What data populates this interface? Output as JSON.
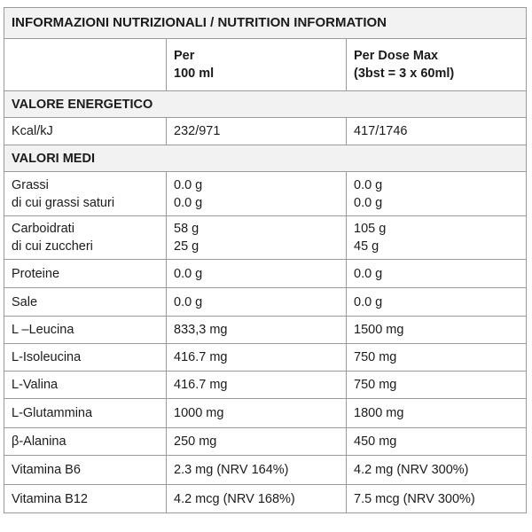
{
  "title": "INFORMAZIONI NUTRIZIONALI / NUTRITION INFORMATION",
  "header": {
    "col1": "",
    "col2_line1": "Per",
    "col2_line2": "100 ml",
    "col3_line1": "Per Dose Max",
    "col3_line2": "(3bst = 3 x 60ml)"
  },
  "sections": {
    "energy": "VALORE ENERGETICO",
    "averages": "VALORI MEDI"
  },
  "rows": {
    "kcal": {
      "label": "Kcal/kJ",
      "per100": "232/971",
      "dose": "417/1746"
    },
    "grassi": {
      "label1": "Grassi",
      "label2": "di cui grassi saturi",
      "per100_1": "0.0 g",
      "per100_2": "0.0 g",
      "dose_1": "0.0 g",
      "dose_2": "0.0 g"
    },
    "carbo": {
      "label1": "Carboidrati",
      "label2": "di cui zuccheri",
      "per100_1": "58 g",
      "per100_2": "25 g",
      "dose_1": "105 g",
      "dose_2": "45 g"
    },
    "proteine": {
      "label": "Proteine",
      "per100": "0.0 g",
      "dose": "0.0 g"
    },
    "sale": {
      "label": "Sale",
      "per100": "0.0 g",
      "dose": "0.0 g"
    },
    "leucina": {
      "label": "L –Leucina",
      "per100": "833,3 mg",
      "dose": "1500 mg"
    },
    "isoleucina": {
      "label": "L-Isoleucina",
      "per100": "416.7 mg",
      "dose": "750 mg"
    },
    "valina": {
      "label": "L-Valina",
      "per100": "416.7 mg",
      "dose": "750 mg"
    },
    "glutammina": {
      "label": "L-Glutammina",
      "per100": "1000 mg",
      "dose": "1800 mg"
    },
    "alanina": {
      "label": "β-Alanina",
      "per100": "250 mg",
      "dose": "450 mg"
    },
    "b6": {
      "label": "Vitamina B6",
      "per100": "2.3 mg (NRV 164%)",
      "dose": "4.2 mg (NRV 300%)"
    },
    "b12": {
      "label": "Vitamina B12",
      "per100": "4.2 mcg (NRV 168%)",
      "dose": "7.5 mcg (NRV 300%)"
    }
  }
}
